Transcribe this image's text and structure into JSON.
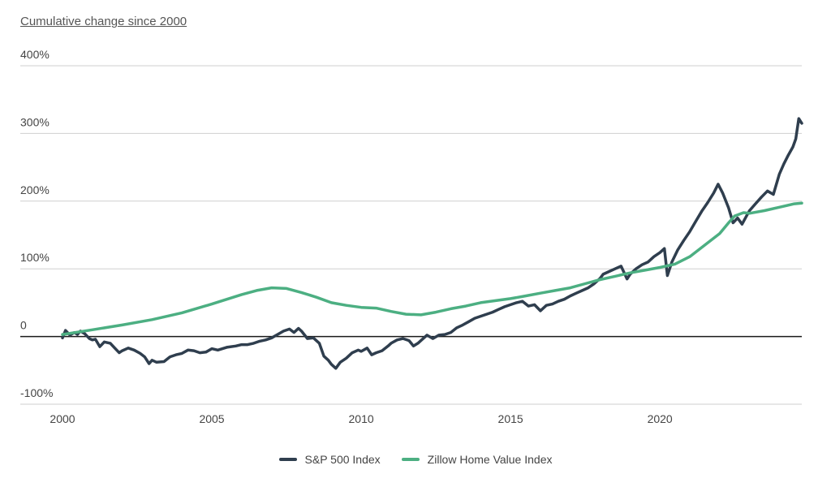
{
  "chart_data": {
    "type": "line",
    "subtitle": "Cumulative change since 2000",
    "xlim": [
      2000,
      2024.75
    ],
    "ylim": [
      -100,
      400
    ],
    "x_ticks": [
      {
        "value": 2000,
        "label": "2000"
      },
      {
        "value": 2005,
        "label": "2005"
      },
      {
        "value": 2010,
        "label": "2010"
      },
      {
        "value": 2015,
        "label": "2015"
      },
      {
        "value": 2020,
        "label": "2020"
      }
    ],
    "y_ticks": [
      {
        "value": -100,
        "label": "-100%"
      },
      {
        "value": 0,
        "label": "0"
      },
      {
        "value": 100,
        "label": "100%"
      },
      {
        "value": 200,
        "label": "200%"
      },
      {
        "value": 300,
        "label": "300%"
      },
      {
        "value": 400,
        "label": "400%"
      }
    ],
    "series": [
      {
        "name": "S&P 500 Index",
        "color": "#2f3e4e",
        "points": [
          [
            2000.0,
            -2
          ],
          [
            2000.1,
            9
          ],
          [
            2000.25,
            2
          ],
          [
            2000.4,
            6
          ],
          [
            2000.5,
            3
          ],
          [
            2000.6,
            8
          ],
          [
            2000.75,
            4
          ],
          [
            2000.9,
            -3
          ],
          [
            2001.0,
            -5
          ],
          [
            2001.1,
            -4
          ],
          [
            2001.25,
            -15
          ],
          [
            2001.4,
            -8
          ],
          [
            2001.6,
            -10
          ],
          [
            2001.75,
            -17
          ],
          [
            2001.9,
            -24
          ],
          [
            2002.0,
            -21
          ],
          [
            2002.2,
            -17
          ],
          [
            2002.4,
            -20
          ],
          [
            2002.6,
            -25
          ],
          [
            2002.75,
            -30
          ],
          [
            2002.9,
            -40
          ],
          [
            2003.0,
            -35
          ],
          [
            2003.15,
            -38
          ],
          [
            2003.4,
            -37
          ],
          [
            2003.6,
            -30
          ],
          [
            2003.8,
            -27
          ],
          [
            2004.0,
            -25
          ],
          [
            2004.2,
            -20
          ],
          [
            2004.4,
            -21
          ],
          [
            2004.6,
            -24
          ],
          [
            2004.8,
            -23
          ],
          [
            2005.0,
            -18
          ],
          [
            2005.2,
            -20
          ],
          [
            2005.5,
            -16
          ],
          [
            2005.8,
            -14
          ],
          [
            2006.0,
            -12
          ],
          [
            2006.2,
            -12
          ],
          [
            2006.4,
            -10
          ],
          [
            2006.6,
            -7
          ],
          [
            2006.8,
            -5
          ],
          [
            2007.0,
            -2
          ],
          [
            2007.2,
            3
          ],
          [
            2007.4,
            8
          ],
          [
            2007.6,
            11
          ],
          [
            2007.75,
            6
          ],
          [
            2007.9,
            12
          ],
          [
            2008.0,
            8
          ],
          [
            2008.2,
            -3
          ],
          [
            2008.4,
            -2
          ],
          [
            2008.6,
            -10
          ],
          [
            2008.75,
            -29
          ],
          [
            2008.9,
            -35
          ],
          [
            2009.0,
            -41
          ],
          [
            2009.15,
            -47
          ],
          [
            2009.3,
            -38
          ],
          [
            2009.5,
            -32
          ],
          [
            2009.7,
            -24
          ],
          [
            2009.9,
            -20
          ],
          [
            2010.0,
            -22
          ],
          [
            2010.2,
            -17
          ],
          [
            2010.35,
            -27
          ],
          [
            2010.5,
            -24
          ],
          [
            2010.7,
            -21
          ],
          [
            2010.9,
            -14
          ],
          [
            2011.0,
            -10
          ],
          [
            2011.2,
            -5
          ],
          [
            2011.4,
            -3
          ],
          [
            2011.6,
            -6
          ],
          [
            2011.75,
            -14
          ],
          [
            2011.9,
            -10
          ],
          [
            2012.0,
            -6
          ],
          [
            2012.2,
            2
          ],
          [
            2012.4,
            -3
          ],
          [
            2012.6,
            2
          ],
          [
            2012.8,
            3
          ],
          [
            2013.0,
            6
          ],
          [
            2013.2,
            13
          ],
          [
            2013.4,
            17
          ],
          [
            2013.6,
            22
          ],
          [
            2013.8,
            27
          ],
          [
            2014.0,
            30
          ],
          [
            2014.2,
            33
          ],
          [
            2014.4,
            36
          ],
          [
            2014.6,
            40
          ],
          [
            2014.8,
            44
          ],
          [
            2015.0,
            47
          ],
          [
            2015.2,
            50
          ],
          [
            2015.4,
            52
          ],
          [
            2015.6,
            45
          ],
          [
            2015.8,
            47
          ],
          [
            2016.0,
            38
          ],
          [
            2016.2,
            46
          ],
          [
            2016.4,
            48
          ],
          [
            2016.6,
            52
          ],
          [
            2016.8,
            55
          ],
          [
            2017.0,
            60
          ],
          [
            2017.2,
            64
          ],
          [
            2017.4,
            68
          ],
          [
            2017.6,
            72
          ],
          [
            2017.8,
            78
          ],
          [
            2018.0,
            86
          ],
          [
            2018.1,
            92
          ],
          [
            2018.3,
            96
          ],
          [
            2018.5,
            100
          ],
          [
            2018.7,
            104
          ],
          [
            2018.9,
            85
          ],
          [
            2019.0,
            92
          ],
          [
            2019.2,
            100
          ],
          [
            2019.4,
            106
          ],
          [
            2019.6,
            110
          ],
          [
            2019.8,
            118
          ],
          [
            2020.0,
            124
          ],
          [
            2020.15,
            130
          ],
          [
            2020.25,
            90
          ],
          [
            2020.4,
            110
          ],
          [
            2020.6,
            128
          ],
          [
            2020.8,
            142
          ],
          [
            2021.0,
            155
          ],
          [
            2021.2,
            170
          ],
          [
            2021.4,
            185
          ],
          [
            2021.6,
            198
          ],
          [
            2021.8,
            212
          ],
          [
            2021.95,
            225
          ],
          [
            2022.1,
            212
          ],
          [
            2022.3,
            190
          ],
          [
            2022.45,
            168
          ],
          [
            2022.6,
            175
          ],
          [
            2022.75,
            166
          ],
          [
            2022.9,
            178
          ],
          [
            2023.0,
            186
          ],
          [
            2023.2,
            196
          ],
          [
            2023.4,
            206
          ],
          [
            2023.6,
            215
          ],
          [
            2023.8,
            210
          ],
          [
            2024.0,
            240
          ],
          [
            2024.15,
            255
          ],
          [
            2024.3,
            268
          ],
          [
            2024.45,
            280
          ],
          [
            2024.55,
            292
          ],
          [
            2024.65,
            322
          ],
          [
            2024.75,
            315
          ]
        ]
      },
      {
        "name": "Zillow Home Value Index",
        "color": "#4caf82",
        "points": [
          [
            2000.0,
            3
          ],
          [
            2001.0,
            10
          ],
          [
            2002.0,
            17
          ],
          [
            2003.0,
            25
          ],
          [
            2004.0,
            35
          ],
          [
            2005.0,
            48
          ],
          [
            2006.0,
            62
          ],
          [
            2006.5,
            68
          ],
          [
            2007.0,
            72
          ],
          [
            2007.5,
            71
          ],
          [
            2008.0,
            65
          ],
          [
            2008.5,
            58
          ],
          [
            2009.0,
            50
          ],
          [
            2009.5,
            46
          ],
          [
            2010.0,
            43
          ],
          [
            2010.5,
            42
          ],
          [
            2011.0,
            37
          ],
          [
            2011.5,
            33
          ],
          [
            2012.0,
            32
          ],
          [
            2012.5,
            36
          ],
          [
            2013.0,
            41
          ],
          [
            2013.5,
            45
          ],
          [
            2014.0,
            50
          ],
          [
            2014.5,
            53
          ],
          [
            2015.0,
            56
          ],
          [
            2015.5,
            60
          ],
          [
            2016.0,
            64
          ],
          [
            2016.5,
            68
          ],
          [
            2017.0,
            72
          ],
          [
            2017.5,
            78
          ],
          [
            2018.0,
            84
          ],
          [
            2018.5,
            89
          ],
          [
            2019.0,
            94
          ],
          [
            2019.5,
            98
          ],
          [
            2020.0,
            102
          ],
          [
            2020.5,
            107
          ],
          [
            2021.0,
            118
          ],
          [
            2021.5,
            135
          ],
          [
            2022.0,
            152
          ],
          [
            2022.3,
            168
          ],
          [
            2022.5,
            178
          ],
          [
            2022.8,
            183
          ],
          [
            2023.0,
            182
          ],
          [
            2023.5,
            186
          ],
          [
            2024.0,
            191
          ],
          [
            2024.5,
            196
          ],
          [
            2024.75,
            197
          ]
        ]
      }
    ]
  },
  "legend": {
    "items": [
      {
        "label": "S&P 500 Index",
        "color": "#2f3e4e"
      },
      {
        "label": "Zillow Home Value Index",
        "color": "#4caf82"
      }
    ]
  }
}
